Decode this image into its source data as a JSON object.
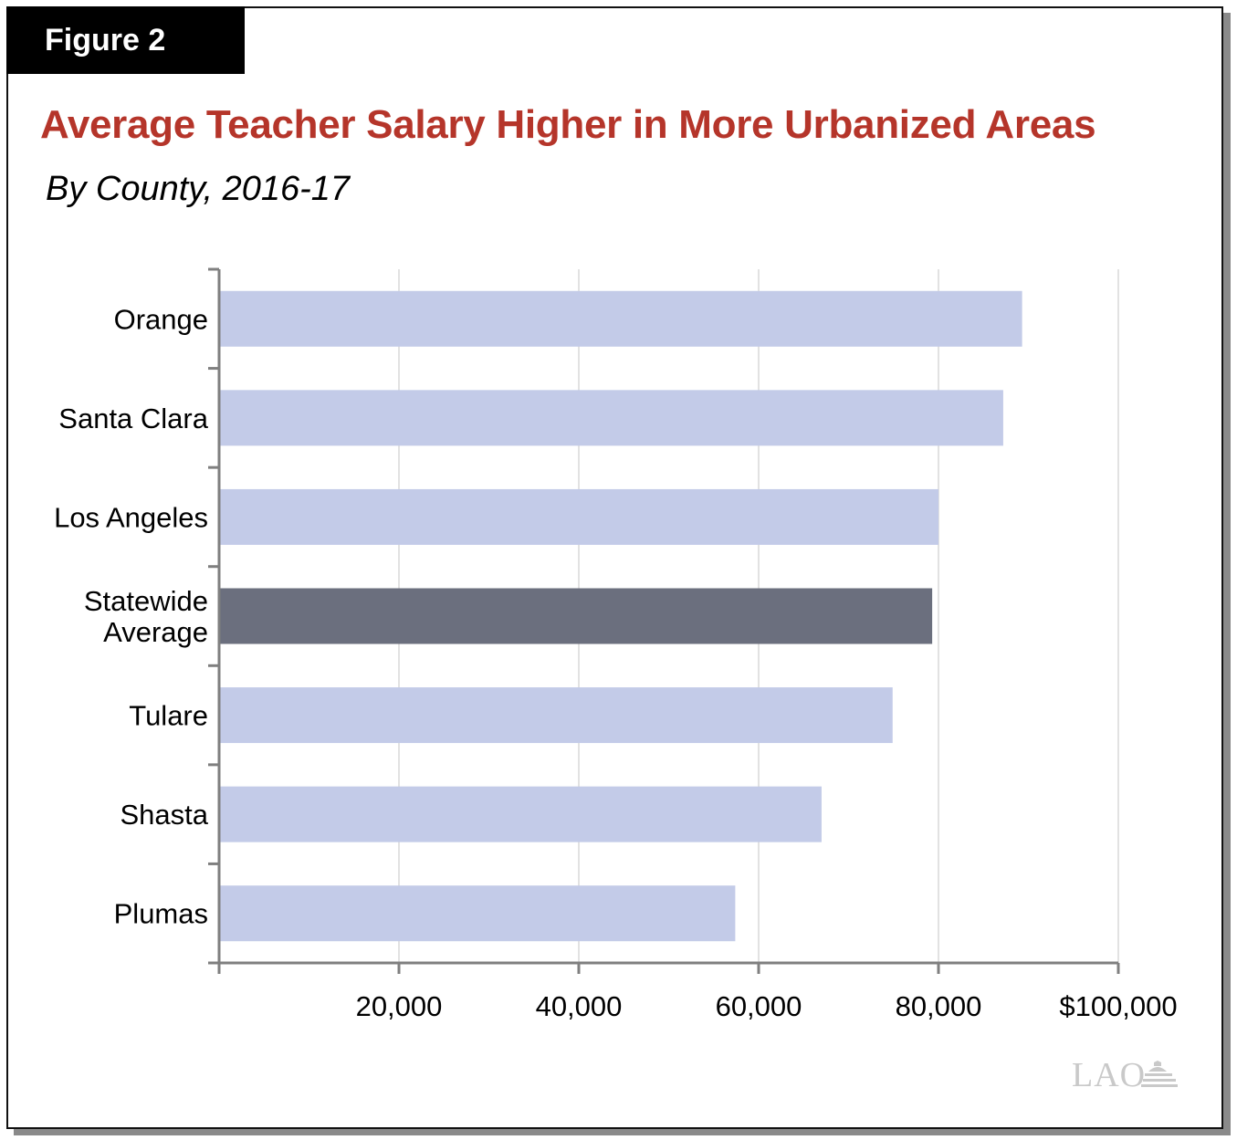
{
  "figure_label": "Figure 2",
  "title": "Average Teacher Salary Higher in More Urbanized Areas",
  "subtitle": "By County, 2016-17",
  "logo_text": "LAO",
  "colors": {
    "bar": "#c3cbe8",
    "highlight_bar": "#6b6f7e",
    "title": "#b5352a",
    "grid": "#d9d9d9",
    "axis": "#7f7f7f"
  },
  "chart_data": {
    "type": "bar",
    "orientation": "horizontal",
    "categories": [
      [
        "Orange"
      ],
      [
        "Santa Clara"
      ],
      [
        "Los Angeles"
      ],
      [
        "Statewide",
        "Average"
      ],
      [
        "Tulare"
      ],
      [
        "Shasta"
      ],
      [
        "Plumas"
      ]
    ],
    "values": [
      89300,
      87200,
      80000,
      79300,
      74900,
      67000,
      57400
    ],
    "highlight": [
      false,
      false,
      false,
      true,
      false,
      false,
      false
    ],
    "xlim": [
      0,
      100000
    ],
    "xticks": [
      20000,
      40000,
      60000,
      80000,
      100000
    ],
    "xtick_labels": [
      "20,000",
      "40,000",
      "60,000",
      "80,000",
      "$100,000"
    ],
    "grid": true,
    "legend": "none"
  }
}
